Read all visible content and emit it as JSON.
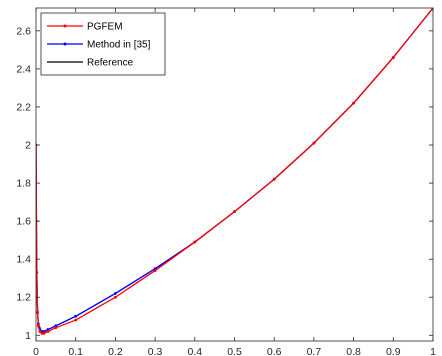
{
  "chart_data": {
    "type": "line",
    "title": "",
    "xlabel": "",
    "ylabel": "",
    "xlim": [
      0,
      1
    ],
    "ylim": [
      0.97,
      2.72
    ],
    "xticks": [
      0,
      0.1,
      0.2,
      0.3,
      0.4,
      0.5,
      0.6,
      0.7,
      0.8,
      0.9,
      1
    ],
    "xtick_labels": [
      "0",
      "0.1",
      "0.2",
      "0.3",
      "0.4",
      "0.5",
      "0.6",
      "0.7",
      "0.8",
      "0.9",
      "1"
    ],
    "yticks": [
      1,
      1.2,
      1.4,
      1.6,
      1.8,
      2,
      2.2,
      2.4,
      2.6
    ],
    "ytick_labels": [
      "1",
      "1.2",
      "1.4",
      "1.6",
      "1.8",
      "2",
      "2.2",
      "2.4",
      "2.6"
    ],
    "grid": false,
    "legend_position": "top-left",
    "series": [
      {
        "name": "PGFEM",
        "color": "#ff0000",
        "marker": "dot",
        "x": [
          0,
          0.001,
          0.002,
          0.004,
          0.006,
          0.01,
          0.015,
          0.02,
          0.03,
          0.05,
          0.1,
          0.2,
          0.3,
          0.4,
          0.5,
          0.6,
          0.7,
          0.8,
          0.9,
          1.0
        ],
        "y": [
          2.0,
          1.6,
          1.33,
          1.12,
          1.05,
          1.02,
          1.01,
          1.01,
          1.02,
          1.04,
          1.08,
          1.2,
          1.34,
          1.49,
          1.65,
          1.82,
          2.01,
          2.22,
          2.46,
          2.72
        ]
      },
      {
        "name": "Method in [35]",
        "color": "#0000ff",
        "marker": "dot",
        "x": [
          0,
          0.002,
          0.004,
          0.006,
          0.008,
          0.01,
          0.015,
          0.02,
          0.03,
          0.05,
          0.1,
          0.2,
          0.3,
          0.4,
          0.5,
          0.6,
          0.7,
          0.8,
          0.9,
          1.0
        ],
        "y": [
          2.0,
          1.33,
          1.12,
          1.06,
          1.04,
          1.03,
          1.02,
          1.02,
          1.03,
          1.05,
          1.1,
          1.22,
          1.35,
          1.49,
          1.65,
          1.82,
          2.01,
          2.22,
          2.46,
          2.72
        ]
      },
      {
        "name": "Reference",
        "color": "#000000",
        "marker": "none",
        "x": [
          0,
          0.002,
          0.005,
          0.01,
          0.015,
          0.02,
          0.03,
          0.05,
          0.1,
          0.2,
          0.3,
          0.4,
          0.5,
          0.6,
          0.7,
          0.8,
          0.9,
          1.0
        ],
        "y": [
          2.0,
          1.25,
          1.08,
          1.03,
          1.02,
          1.02,
          1.03,
          1.05,
          1.1,
          1.22,
          1.35,
          1.49,
          1.65,
          1.82,
          2.01,
          2.22,
          2.46,
          2.72
        ]
      }
    ]
  }
}
